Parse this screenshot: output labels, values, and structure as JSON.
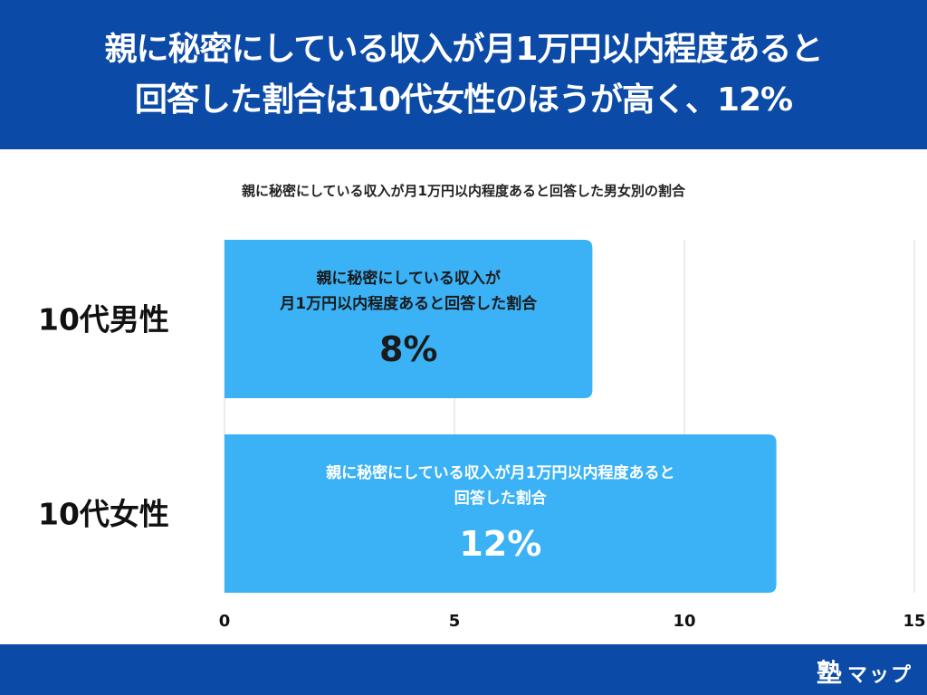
{
  "header": {
    "title_line1": "親に秘密にしている収入が月1万円以内程度あると",
    "title_line2": "回答した割合は10代女性のほうが高く、12%"
  },
  "brand": {
    "logo_kanji": "塾",
    "logo_kana": "マップ"
  },
  "colors": {
    "header_bg": "#0b4aa6",
    "bar": "#3bb2f6",
    "grid": "#d9d9d9"
  },
  "chart_data": {
    "type": "bar",
    "orientation": "horizontal",
    "title": "親に秘密にしている収入が月1万円以内程度あると回答した男女別の割合",
    "categories": [
      "10代男性",
      "10代女性"
    ],
    "values": [
      8,
      12
    ],
    "bar_labels": [
      [
        "親に秘密にしている収入が",
        "月1万円以内程度あると回答した割合"
      ],
      [
        "親に秘密にしている収入が月1万円以内程度あると",
        "回答した割合"
      ]
    ],
    "value_labels": [
      "8%",
      "12%"
    ],
    "xlim": [
      0,
      15
    ],
    "xticks": [
      "0",
      "5",
      "10",
      "15"
    ],
    "grid": true
  }
}
